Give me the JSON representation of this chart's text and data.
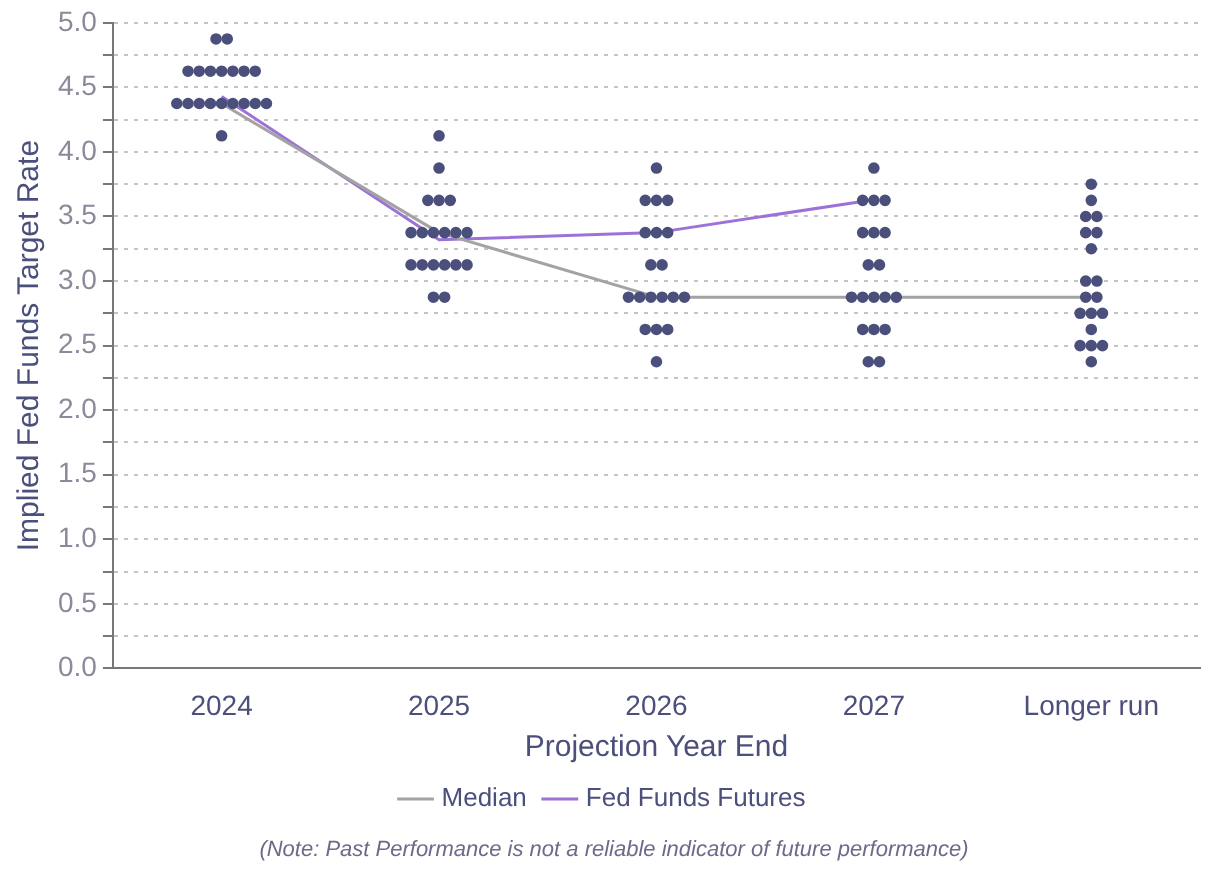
{
  "chart_data": {
    "type": "line",
    "xlabel": "Projection Year End",
    "ylabel": "Implied Fed Funds Target Rate",
    "categories": [
      "2024",
      "2025",
      "2026",
      "2027",
      "Longer run"
    ],
    "ylim": [
      0,
      5
    ],
    "yticks": [
      {
        "value": 0,
        "label": "0.0"
      },
      {
        "value": 0.25,
        "label": null
      },
      0.5,
      {
        "value": 0.75,
        "label": null
      },
      {
        "value": 1,
        "label": "1.0"
      },
      {
        "value": 1.25,
        "label": null
      },
      1.5,
      {
        "value": 1.75,
        "label": null
      },
      {
        "value": 2,
        "label": "2.0"
      },
      {
        "value": 2.25,
        "label": null
      },
      2.5,
      {
        "value": 2.75,
        "label": null
      },
      {
        "value": 3,
        "label": "3.0"
      },
      {
        "value": 3.25,
        "label": null
      },
      3.5,
      {
        "value": 3.75,
        "label": null
      },
      {
        "value": 4,
        "label": "4.0"
      },
      {
        "value": 4.25,
        "label": null
      },
      4.5,
      {
        "value": 4.75,
        "label": null
      },
      {
        "value": 5,
        "label": "5.0"
      }
    ],
    "grid": "y",
    "legend": "bottom",
    "marker": "none",
    "line_style": "solid",
    "series": [
      {
        "type": "scatter",
        "color": "#4b4f7c",
        "marker": "circle",
        "values": [
          4.875,
          4.125,
          3.875,
          3.875,
          3.75
        ]
      },
      {
        "type": "scatter",
        "color": "#4b4f7c",
        "marker": "circle",
        "values": [
          4.875,
          3.875,
          3.625,
          3.625,
          3.625
        ]
      },
      {
        "type": "scatter",
        "color": "#4b4f7c",
        "marker": "circle",
        "values": [
          4.625,
          3.625,
          3.625,
          3.625,
          3.5
        ]
      },
      {
        "type": "scatter",
        "color": "#4b4f7c",
        "marker": "circle",
        "values": [
          4.625,
          3.625,
          3.625,
          3.625,
          3.5
        ]
      },
      {
        "type": "scatter",
        "color": "#4b4f7c",
        "marker": "circle",
        "values": [
          4.625,
          3.625,
          3.375,
          3.375,
          3.375
        ]
      },
      {
        "type": "scatter",
        "color": "#4b4f7c",
        "marker": "circle",
        "values": [
          4.625,
          3.375,
          3.375,
          3.375,
          3.375
        ]
      },
      {
        "type": "scatter",
        "color": "#4b4f7c",
        "marker": "circle",
        "values": [
          4.625,
          3.375,
          3.375,
          3.375,
          3.25
        ]
      },
      {
        "type": "scatter",
        "color": "#4b4f7c",
        "marker": "circle",
        "values": [
          4.625,
          3.375,
          3.125,
          3.125,
          3.0
        ]
      },
      {
        "type": "scatter",
        "color": "#4b4f7c",
        "marker": "circle",
        "values": [
          4.625,
          3.375,
          3.125,
          3.125,
          3.0
        ]
      },
      {
        "type": "scatter",
        "color": "#4b4f7c",
        "marker": "circle",
        "values": [
          4.375,
          3.375,
          2.875,
          2.875,
          2.875
        ]
      },
      {
        "type": "scatter",
        "color": "#4b4f7c",
        "marker": "circle",
        "values": [
          4.375,
          3.375,
          2.875,
          2.875,
          2.875
        ]
      },
      {
        "type": "scatter",
        "color": "#4b4f7c",
        "marker": "circle",
        "values": [
          4.375,
          3.125,
          2.875,
          2.875,
          2.75
        ]
      },
      {
        "type": "scatter",
        "color": "#4b4f7c",
        "marker": "circle",
        "values": [
          4.375,
          3.125,
          2.875,
          2.875,
          2.75
        ]
      },
      {
        "type": "scatter",
        "color": "#4b4f7c",
        "marker": "circle",
        "values": [
          4.375,
          3.125,
          2.875,
          2.875,
          2.75
        ]
      },
      {
        "type": "scatter",
        "color": "#4b4f7c",
        "marker": "circle",
        "values": [
          4.375,
          3.125,
          2.875,
          2.625,
          2.625
        ]
      },
      {
        "type": "scatter",
        "color": "#4b4f7c",
        "marker": "circle",
        "values": [
          4.375,
          3.125,
          2.625,
          2.625,
          2.5
        ]
      },
      {
        "type": "scatter",
        "color": "#4b4f7c",
        "marker": "circle",
        "values": [
          4.375,
          3.125,
          2.625,
          2.625,
          2.5
        ]
      },
      {
        "type": "scatter",
        "color": "#4b4f7c",
        "marker": "circle",
        "values": [
          4.375,
          2.875,
          2.625,
          2.375,
          2.5
        ]
      },
      {
        "type": "scatter",
        "color": "#4b4f7c",
        "marker": "circle",
        "values": [
          4.125,
          2.875,
          2.375,
          2.375,
          2.375
        ]
      },
      {
        "name": "Median",
        "color": "#a3a3a3",
        "values": [
          4.375,
          3.375,
          2.875,
          2.875,
          2.875
        ]
      },
      {
        "name": "Fed Funds Futures",
        "color": "#9d72d8",
        "values": [
          4.43,
          3.32,
          3.375,
          3.63,
          null
        ]
      }
    ],
    "annotations": [
      "(Note: Past Performance is not a reliable indicator of future performance)"
    ]
  }
}
